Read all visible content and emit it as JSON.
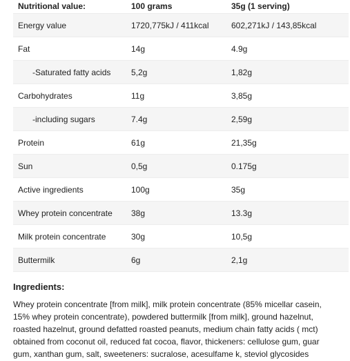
{
  "table": {
    "header": [
      "Nutritional value:",
      "100 grams",
      "35g (1 serving)"
    ],
    "rows": [
      [
        "Energy value",
        "1720,775kJ / 411kcal",
        "602,271kJ / 143,85kcal"
      ],
      [
        "Fat",
        "14g",
        "4.9g"
      ],
      [
        "-Saturated fatty acids",
        "5,2g",
        "1,82g"
      ],
      [
        "Carbohydrates",
        "11g",
        "3,85g"
      ],
      [
        "-including sugars",
        "7.4g",
        "2,59g"
      ],
      [
        "Protein",
        "61g",
        "21,35g"
      ],
      [
        "Sun",
        "0,5g",
        "0.175g"
      ],
      [
        "Active ingredients",
        "100g",
        "35g"
      ],
      [
        "Whey protein concentrate",
        "38g",
        "13.3g"
      ],
      [
        "Milk protein concentrate",
        "30g",
        "10,5g"
      ],
      [
        "Buttermilk",
        "6g",
        "2,1g"
      ]
    ]
  },
  "ingredients": {
    "title": "Ingredients:",
    "text": "Whey protein concentrate [from milk], milk protein concentrate (85% micellar casein, 15% whey protein concentrate), powdered buttermilk [from milk], ground hazelnut, roasted hazelnut, ground defatted roasted peanuts, medium chain fatty acids ( mct) obtained from coconut oil, reduced fat cocoa, flavor, thickeners: cellulose gum, guar gum, xanthan gum, salt, sweeteners: sucralose, acesulfame k, steviol glycosides"
  }
}
